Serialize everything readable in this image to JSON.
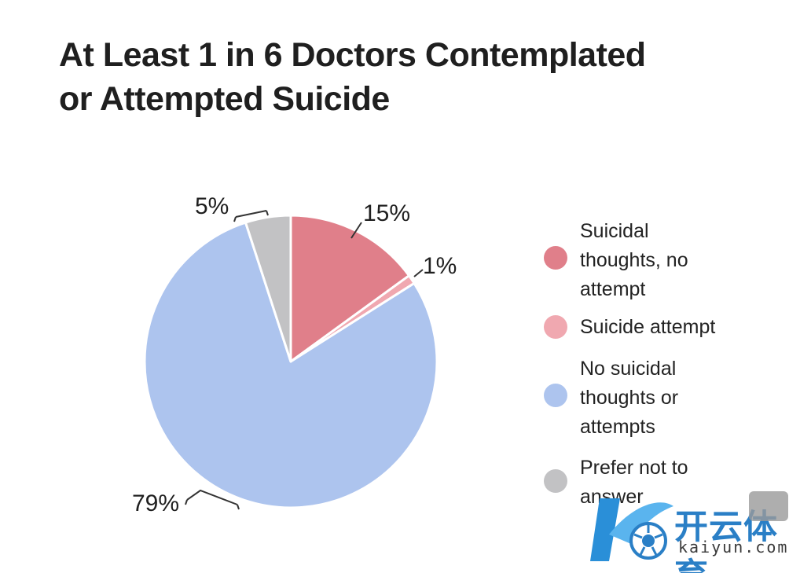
{
  "chart_data": {
    "type": "pie",
    "title_lines": [
      "At Least 1 in 6 Doctors Contemplated",
      "or Attempted Suicide"
    ],
    "slices": [
      {
        "label_lines": [
          "Suicidal",
          "thoughts, no",
          "attempt"
        ],
        "value": 15,
        "value_label": "15%",
        "color": "#e07f8a"
      },
      {
        "label_lines": [
          "Suicide attempt"
        ],
        "value": 1,
        "value_label": "1%",
        "color": "#f0a8b0"
      },
      {
        "label_lines": [
          "No suicidal",
          "thoughts or",
          "attempts"
        ],
        "value": 79,
        "value_label": "79%",
        "color": "#adc4ee"
      },
      {
        "label_lines": [
          "Prefer not to",
          "answer"
        ],
        "value": 5,
        "value_label": "5%",
        "color": "#c2c2c4"
      }
    ],
    "start_angle_deg": 0,
    "direction": "clockwise",
    "legend_position": "right"
  },
  "watermark": {
    "text": "开云体育",
    "subtext": "kaiyun.com",
    "color": "#2a7fc6"
  }
}
